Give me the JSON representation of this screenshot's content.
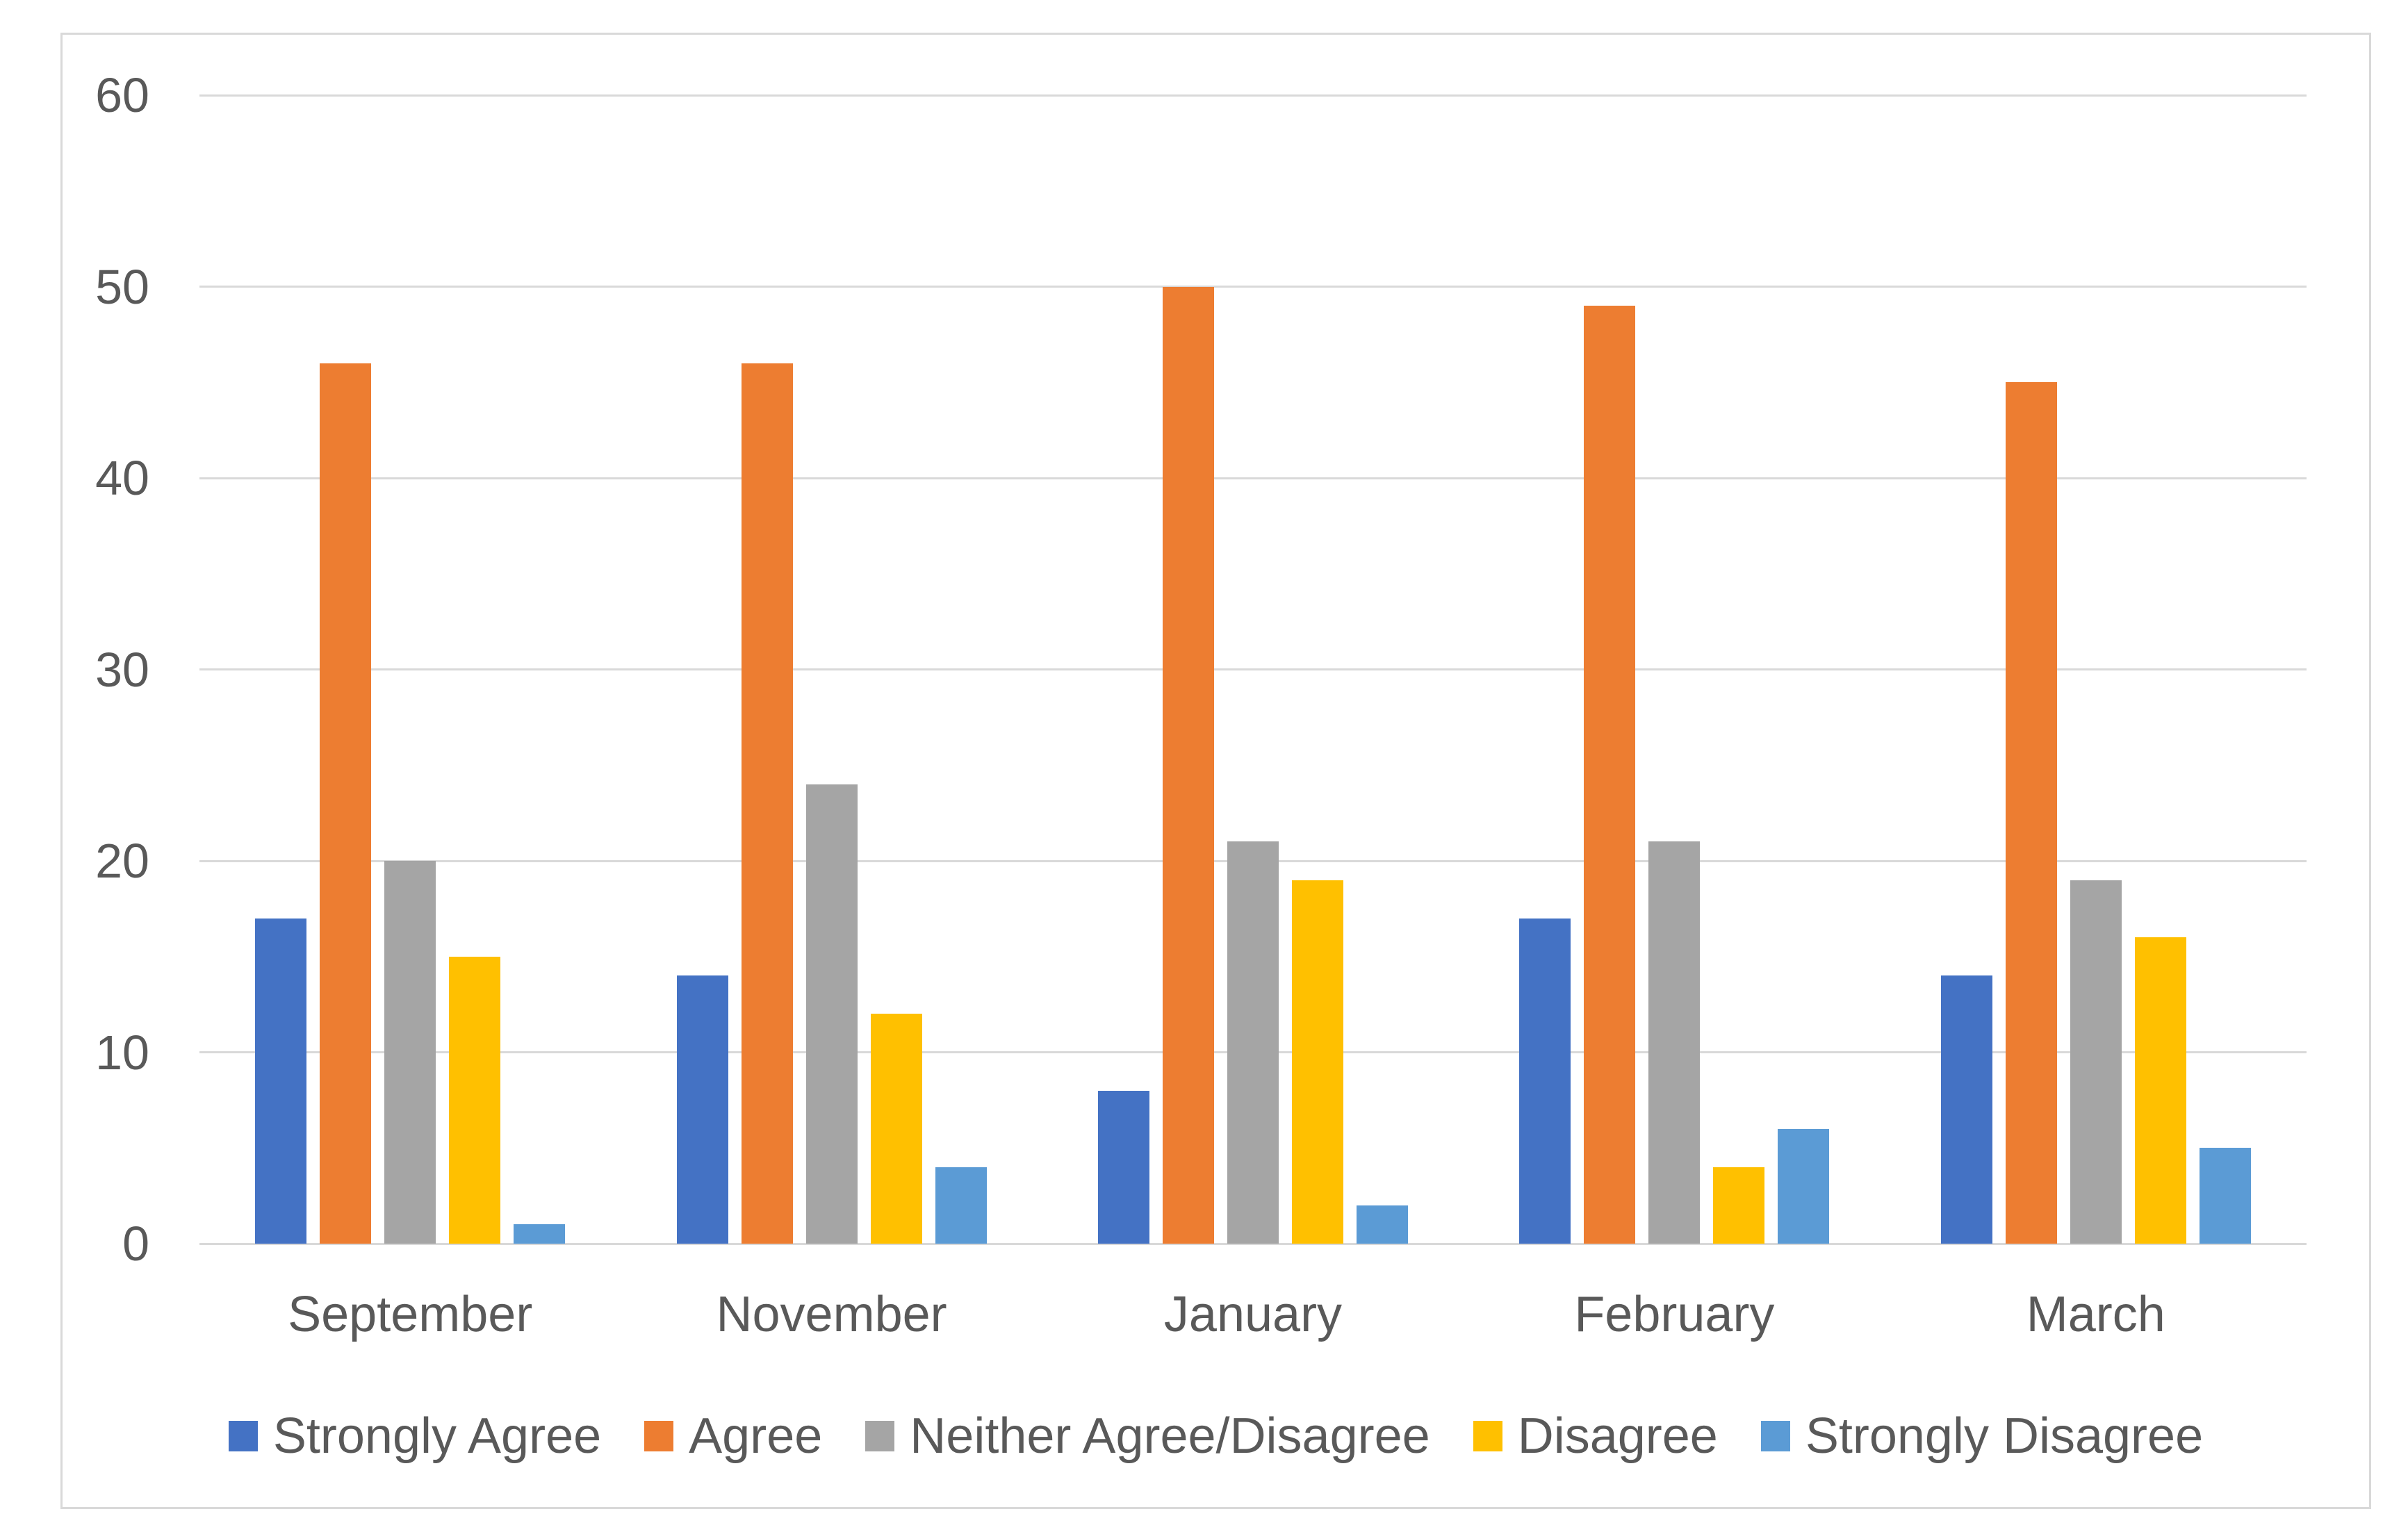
{
  "chart_data": {
    "type": "bar",
    "title": "",
    "xlabel": "",
    "ylabel": "",
    "categories": [
      "September",
      "November",
      "January",
      "February",
      "March"
    ],
    "series": [
      {
        "name": "Strongly Agree",
        "color": "#4472C4",
        "values": [
          17,
          14,
          8,
          17,
          14
        ]
      },
      {
        "name": "Agree",
        "color": "#ED7D31",
        "values": [
          46,
          46,
          50,
          49,
          45
        ]
      },
      {
        "name": "Neither Agree/Disagree",
        "color": "#A5A5A5",
        "values": [
          20,
          24,
          21,
          21,
          19
        ]
      },
      {
        "name": "Disagree",
        "color": "#FFC000",
        "values": [
          15,
          12,
          19,
          4,
          16
        ]
      },
      {
        "name": "Strongly Disagree",
        "color": "#5B9BD5",
        "values": [
          1,
          4,
          2,
          6,
          5
        ]
      }
    ],
    "ylim": [
      0,
      60
    ],
    "yticks": [
      "0",
      "10",
      "20",
      "30",
      "40",
      "50",
      "60"
    ],
    "grid": true,
    "legend_position": "bottom"
  },
  "colors": {
    "background": "#FFFFFF",
    "chart_border": "#D9D9D9",
    "gridline": "#D9D9D9",
    "text": "#595959"
  }
}
